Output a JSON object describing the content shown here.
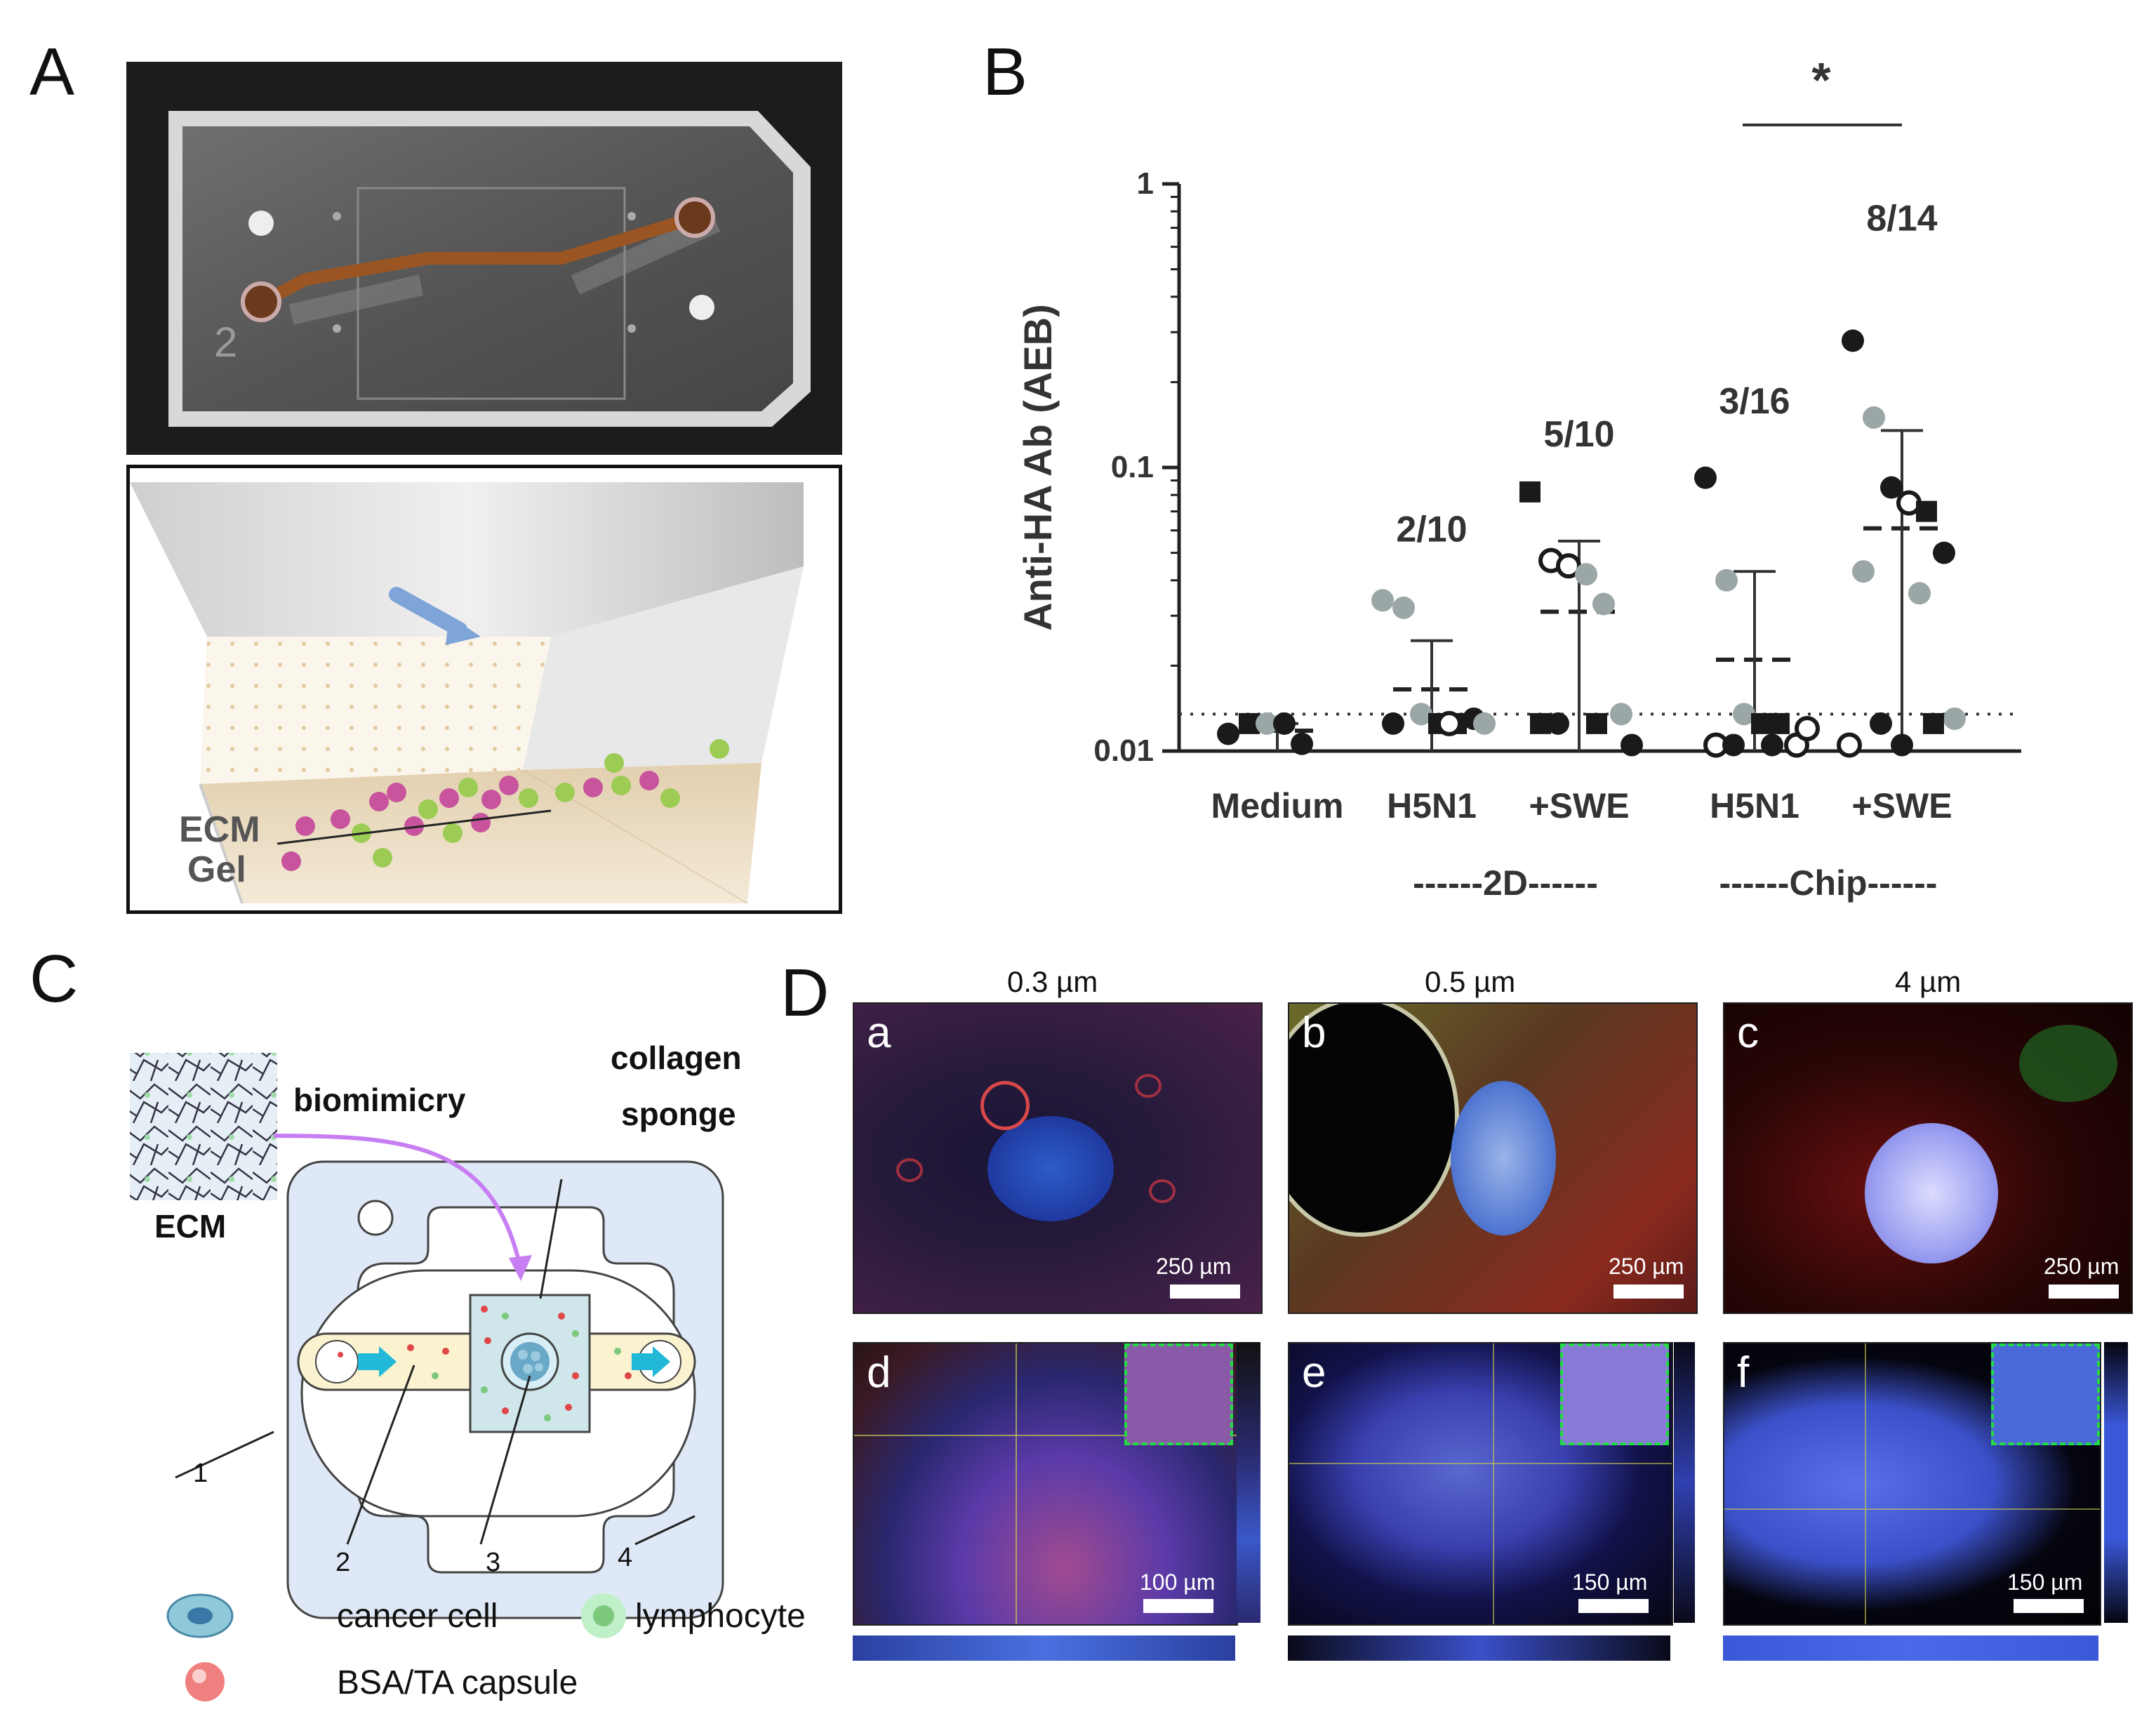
{
  "panels": {
    "a": "A",
    "b": "B",
    "c": "C",
    "d": "D"
  },
  "panel_a": {
    "chip_mark": "2",
    "ecm_label_line1": "ECM",
    "ecm_label_line2": "Gel"
  },
  "panel_b": {
    "significance": "*",
    "counts": [
      "2/10",
      "5/10",
      "3/16",
      "8/14"
    ],
    "group_labels": [
      "------2D------",
      "------Chip------"
    ]
  },
  "panel_c": {
    "biomimicry": "biomimicry",
    "ecm": "ECM",
    "collagen_line1": "collagen",
    "collagen_line2": "sponge",
    "callouts": [
      "1",
      "2",
      "3",
      "4"
    ],
    "legend": {
      "cancer_cell": "cancer cell",
      "lymphocyte": "lymphocyte",
      "capsule": "BSA/TA capsule"
    }
  },
  "panel_d": {
    "columns": [
      "0.3 µm",
      "0.5 µm",
      "4 µm"
    ],
    "sub_labels": [
      "a",
      "b",
      "c",
      "d",
      "e",
      "f"
    ],
    "scale_bars": [
      "250 µm",
      "250 µm",
      "250 µm",
      "100 µm",
      "150 µm",
      "150 µm"
    ]
  },
  "chart_data": {
    "type": "scatter",
    "title": "",
    "ylabel": "Anti-HA Ab (AEB)",
    "y_scale": "log",
    "ylim": [
      0.01,
      1
    ],
    "yticks": [
      "0.01",
      "0.1",
      "1"
    ],
    "detection_limit": 0.0135,
    "categories": [
      "Medium",
      "H5N1",
      "+SWE",
      "H5N1",
      "+SWE"
    ],
    "groups": [
      {
        "category": "Medium",
        "mean": 0.0118,
        "sd_upper": 0.0125,
        "points": [
          {
            "y": 0.0115,
            "m": "dark-circle"
          },
          {
            "y": 0.0125,
            "m": "dark-square"
          },
          {
            "y": 0.0125,
            "m": "gray-circle"
          },
          {
            "y": 0.0125,
            "m": "dark-circle"
          },
          {
            "y": 0.0106,
            "m": "dark-circle"
          }
        ]
      },
      {
        "category": "H5N1",
        "mean": 0.0165,
        "sd_upper": 0.0245,
        "points": [
          {
            "y": 0.034,
            "m": "gray-circle"
          },
          {
            "y": 0.032,
            "m": "gray-circle"
          },
          {
            "y": 0.0135,
            "m": "gray-circle"
          },
          {
            "y": 0.0125,
            "m": "dark-square"
          },
          {
            "y": 0.0125,
            "m": "dark-square"
          },
          {
            "y": 0.013,
            "m": "dark-circle"
          },
          {
            "y": 0.0125,
            "m": "dark-circle"
          },
          {
            "y": 0.0125,
            "m": "open-circle"
          },
          {
            "y": 0.0125,
            "m": "gray-circle"
          }
        ]
      },
      {
        "category": "+SWE",
        "mean": 0.031,
        "sd_upper": 0.055,
        "points": [
          {
            "y": 0.082,
            "m": "dark-square"
          },
          {
            "y": 0.047,
            "m": "open-circle"
          },
          {
            "y": 0.045,
            "m": "open-circle"
          },
          {
            "y": 0.042,
            "m": "gray-circle"
          },
          {
            "y": 0.033,
            "m": "gray-circle"
          },
          {
            "y": 0.0135,
            "m": "gray-circle"
          },
          {
            "y": 0.0125,
            "m": "dark-square"
          },
          {
            "y": 0.0125,
            "m": "dark-square"
          },
          {
            "y": 0.0105,
            "m": "dark-circle"
          },
          {
            "y": 0.0125,
            "m": "dark-circle"
          }
        ]
      },
      {
        "category": "H5N1",
        "mean": 0.021,
        "sd_upper": 0.043,
        "points": [
          {
            "y": 0.092,
            "m": "dark-circle"
          },
          {
            "y": 0.04,
            "m": "gray-circle"
          },
          {
            "y": 0.0135,
            "m": "gray-circle"
          },
          {
            "y": 0.0125,
            "m": "dark-square"
          },
          {
            "y": 0.0125,
            "m": "dark-square"
          },
          {
            "y": 0.0105,
            "m": "open-circle"
          },
          {
            "y": 0.0105,
            "m": "open-circle"
          },
          {
            "y": 0.0105,
            "m": "dark-circle"
          },
          {
            "y": 0.012,
            "m": "open-circle"
          },
          {
            "y": 0.0105,
            "m": "dark-circle"
          }
        ]
      },
      {
        "category": "+SWE",
        "mean": 0.061,
        "sd_upper": 0.135,
        "points": [
          {
            "y": 0.28,
            "m": "dark-circle"
          },
          {
            "y": 0.15,
            "m": "gray-circle"
          },
          {
            "y": 0.085,
            "m": "dark-circle"
          },
          {
            "y": 0.075,
            "m": "open-circle"
          },
          {
            "y": 0.07,
            "m": "dark-square"
          },
          {
            "y": 0.05,
            "m": "dark-circle"
          },
          {
            "y": 0.043,
            "m": "gray-circle"
          },
          {
            "y": 0.036,
            "m": "gray-circle"
          },
          {
            "y": 0.013,
            "m": "gray-circle"
          },
          {
            "y": 0.0125,
            "m": "dark-circle"
          },
          {
            "y": 0.0125,
            "m": "dark-square"
          },
          {
            "y": 0.0105,
            "m": "open-circle"
          },
          {
            "y": 0.0105,
            "m": "dark-circle"
          }
        ]
      }
    ]
  }
}
